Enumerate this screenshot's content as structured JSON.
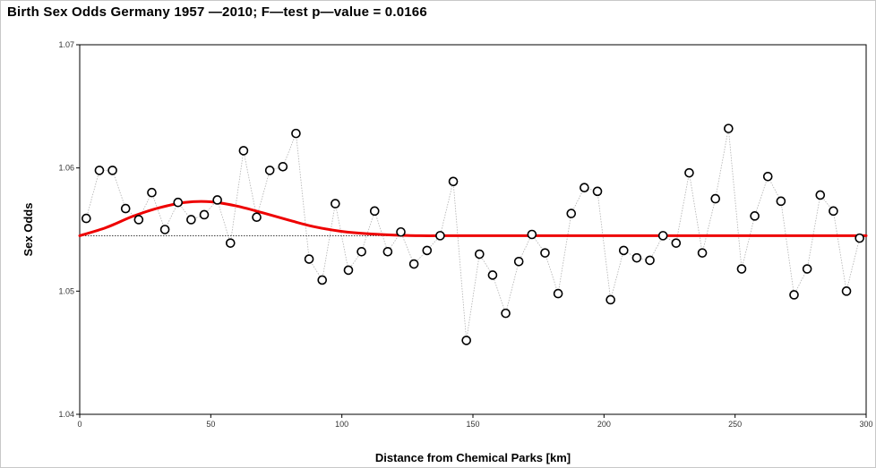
{
  "chart_data": {
    "type": "scatter",
    "title": "Birth Sex Odds Germany 1957 —2010; F—test p—value = 0.0166",
    "xlabel": "Distance from Chemical Parks [km]",
    "ylabel": "Sex Odds",
    "xlim": [
      0,
      300
    ],
    "ylim": [
      1.04,
      1.07
    ],
    "x_ticks": [
      0,
      50,
      100,
      150,
      200,
      250,
      300
    ],
    "y_ticks": [
      1.04,
      1.05,
      1.06,
      1.07
    ],
    "x_tick_labels": [
      "0",
      "50",
      "100",
      "150",
      "200",
      "250",
      "300"
    ],
    "y_tick_labels": [
      "1.04",
      "1.05",
      "1.06",
      "1.07"
    ],
    "grid": false,
    "colors": {
      "points": "#000000",
      "connector": "#b0b0b0",
      "fit": "#ee0000",
      "reference": "#000000"
    },
    "reference_line": 1.0545,
    "series": [
      {
        "x": [
          2.5,
          7.5,
          12.5,
          17.5,
          22.5,
          27.5,
          32.5,
          37.5,
          42.5,
          47.5,
          52.5,
          57.5,
          62.5,
          67.5,
          72.5,
          77.5,
          82.5,
          87.5,
          92.5,
          97.5,
          102.5,
          107.5,
          112.5,
          117.5,
          122.5,
          127.5,
          132.5,
          137.5,
          142.5,
          147.5,
          152.5,
          157.5,
          162.5,
          167.5,
          172.5,
          177.5,
          182.5,
          187.5,
          192.5,
          197.5,
          202.5,
          207.5,
          212.5,
          217.5,
          222.5,
          227.5,
          232.5,
          237.5,
          242.5,
          247.5,
          252.5,
          257.5,
          262.5,
          267.5,
          272.5,
          277.5,
          282.5,
          287.5,
          292.5,
          297.5
        ],
        "y": [
          1.0559,
          1.0598,
          1.0598,
          1.0567,
          1.0558,
          1.058,
          1.055,
          1.0572,
          1.0558,
          1.0562,
          1.0574,
          1.0539,
          1.0614,
          1.056,
          1.0598,
          1.0601,
          1.0628,
          1.0526,
          1.0509,
          1.0571,
          1.0517,
          1.0532,
          1.0565,
          1.0532,
          1.0548,
          1.0522,
          1.0533,
          1.0545,
          1.0589,
          1.046,
          1.053,
          1.0513,
          1.0482,
          1.0524,
          1.0546,
          1.0531,
          1.0498,
          1.0563,
          1.0584,
          1.0581,
          1.0493,
          1.0533,
          1.0527,
          1.0525,
          1.0545,
          1.0539,
          1.0596,
          1.0531,
          1.0575,
          1.0632,
          1.0518,
          1.0561,
          1.0593,
          1.0573,
          1.0497,
          1.0518,
          1.0578,
          1.0565,
          1.05,
          1.0543
        ]
      }
    ],
    "fit": {
      "x": [
        0,
        10,
        20,
        30,
        40,
        50,
        60,
        70,
        80,
        90,
        100,
        110,
        120,
        130,
        140,
        150,
        175,
        200,
        250,
        300
      ],
      "y": [
        1.0545,
        1.05515,
        1.05605,
        1.05675,
        1.0572,
        1.05725,
        1.0569,
        1.05635,
        1.05575,
        1.0552,
        1.05485,
        1.05465,
        1.05455,
        1.0545,
        1.0545,
        1.0545,
        1.0545,
        1.0545,
        1.0545,
        1.0545
      ]
    }
  }
}
